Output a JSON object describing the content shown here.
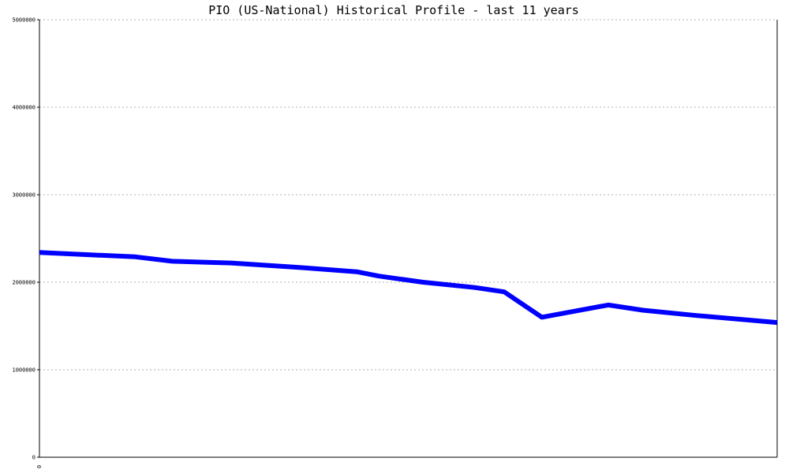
{
  "chart_data": {
    "type": "line",
    "title": "PIO (US-National) Historical Profile - last 11 years",
    "xlabel": "",
    "ylabel": "",
    "ylim": [
      0,
      5000000
    ],
    "yticks": [
      0,
      1000000,
      2000000,
      3000000,
      4000000,
      5000000
    ],
    "ytick_labels": [
      "0",
      "1000000",
      "2000000",
      "3000000",
      "4000000",
      "5000000"
    ],
    "x_tick_labels": [
      "0"
    ],
    "grid": true,
    "series": [
      {
        "color": "#0000ff",
        "values": [
          2340000,
          2290000,
          2240000,
          2220000,
          2170000,
          2120000,
          2070000,
          2000000,
          1940000,
          1890000,
          1600000,
          1740000,
          1680000,
          1620000,
          1540000
        ]
      }
    ],
    "x": [
      0,
      0.13,
      0.18,
      0.26,
      0.35,
      0.43,
      0.46,
      0.52,
      0.59,
      0.63,
      0.681,
      0.771,
      0.818,
      0.89,
      1.0
    ]
  }
}
